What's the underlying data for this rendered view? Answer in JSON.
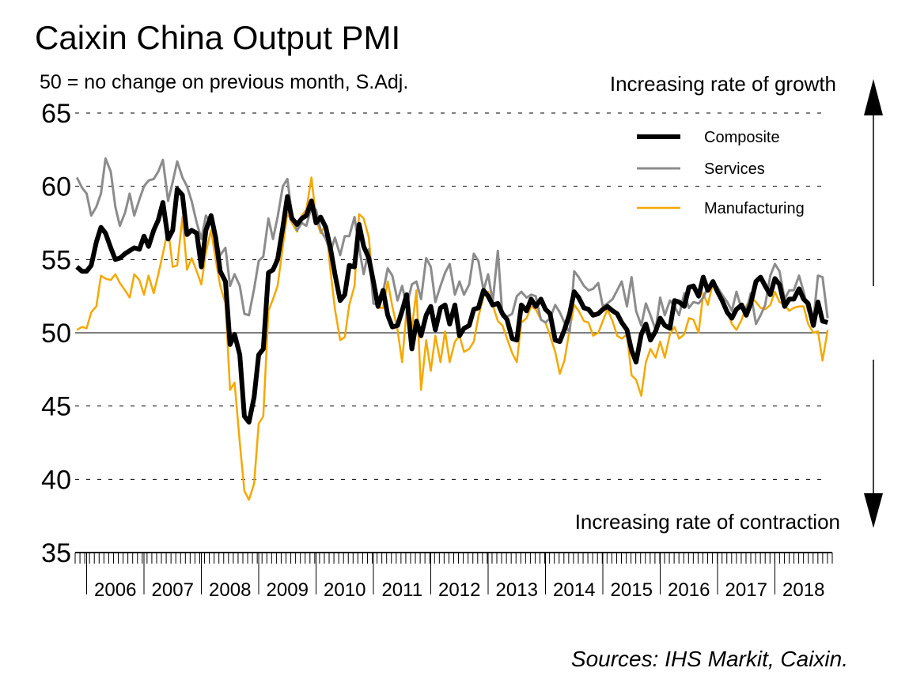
{
  "chart_data": {
    "type": "line",
    "title": "Caixin China Output PMI",
    "subtitle": "50 = no change on previous month, S.Adj.",
    "annotations": [
      "Increasing rate of growth",
      "Increasing rate of contraction"
    ],
    "source": "Sources: IHS Markit, Caixin.",
    "xlim": [
      2005.8,
      2019.0
    ],
    "ylim": [
      35,
      65
    ],
    "yticks": [
      35,
      40,
      45,
      50,
      55,
      60,
      65
    ],
    "xticks": [
      {
        "value": 2006.5,
        "label": "2006"
      },
      {
        "value": 2007.5,
        "label": "2007"
      },
      {
        "value": 2008.5,
        "label": "2008"
      },
      {
        "value": 2009.5,
        "label": "2009"
      },
      {
        "value": 2010.5,
        "label": "2010"
      },
      {
        "value": 2011.5,
        "label": "2011"
      },
      {
        "value": 2012.5,
        "label": "2012"
      },
      {
        "value": 2013.5,
        "label": "2013"
      },
      {
        "value": 2014.5,
        "label": "2014"
      },
      {
        "value": 2015.5,
        "label": "2015"
      },
      {
        "value": 2016.5,
        "label": "2016"
      },
      {
        "value": 2017.5,
        "label": "2017"
      },
      {
        "value": 2018.5,
        "label": "2018"
      }
    ],
    "grid": true,
    "baseline": 50,
    "legend": "top-right",
    "x": [
      2005.83,
      2005.92,
      2006,
      2006.08,
      2006.17,
      2006.25,
      2006.33,
      2006.42,
      2006.5,
      2006.58,
      2006.67,
      2006.75,
      2006.83,
      2006.92,
      2007,
      2007.08,
      2007.17,
      2007.25,
      2007.33,
      2007.42,
      2007.5,
      2007.58,
      2007.67,
      2007.75,
      2007.83,
      2007.92,
      2008,
      2008.08,
      2008.17,
      2008.25,
      2008.33,
      2008.42,
      2008.5,
      2008.58,
      2008.67,
      2008.75,
      2008.83,
      2008.92,
      2009,
      2009.08,
      2009.17,
      2009.25,
      2009.33,
      2009.42,
      2009.5,
      2009.58,
      2009.67,
      2009.75,
      2009.83,
      2009.92,
      2010,
      2010.08,
      2010.17,
      2010.25,
      2010.33,
      2010.42,
      2010.5,
      2010.58,
      2010.67,
      2010.75,
      2010.83,
      2010.92,
      2011,
      2011.08,
      2011.17,
      2011.25,
      2011.33,
      2011.42,
      2011.5,
      2011.58,
      2011.67,
      2011.75,
      2011.83,
      2011.92,
      2012,
      2012.08,
      2012.17,
      2012.25,
      2012.33,
      2012.42,
      2012.5,
      2012.58,
      2012.67,
      2012.75,
      2012.83,
      2012.92,
      2013,
      2013.08,
      2013.17,
      2013.25,
      2013.33,
      2013.42,
      2013.5,
      2013.58,
      2013.67,
      2013.75,
      2013.83,
      2013.92,
      2014,
      2014.08,
      2014.17,
      2014.25,
      2014.33,
      2014.42,
      2014.5,
      2014.58,
      2014.67,
      2014.75,
      2014.83,
      2014.92,
      2015,
      2015.08,
      2015.17,
      2015.25,
      2015.33,
      2015.42,
      2015.5,
      2015.58,
      2015.67,
      2015.75,
      2015.83,
      2015.92,
      2016,
      2016.08,
      2016.17,
      2016.25,
      2016.33,
      2016.42,
      2016.5,
      2016.58,
      2016.67,
      2016.75,
      2016.83,
      2016.92,
      2017,
      2017.08,
      2017.17,
      2017.25,
      2017.33,
      2017.42,
      2017.5,
      2017.58,
      2017.67,
      2017.75,
      2017.83,
      2017.92,
      2018,
      2018.08,
      2018.17,
      2018.25,
      2018.33,
      2018.42,
      2018.5,
      2018.58,
      2018.67,
      2018.75,
      2018.83,
      2018.92
    ],
    "series": [
      {
        "name": "Composite",
        "color": "#000000",
        "width": 6,
        "values": [
          54.5,
          54.2,
          54.2,
          54.6,
          56.2,
          57.2,
          56.8,
          55.8,
          55.0,
          55.1,
          55.4,
          55.6,
          55.8,
          55.7,
          56.6,
          55.9,
          57.0,
          57.7,
          58.9,
          56.4,
          57.0,
          59.8,
          59.4,
          56.7,
          57.0,
          56.8,
          54.5,
          57.0,
          58.0,
          56.5,
          54.2,
          53.5,
          49.2,
          49.9,
          48.5,
          44.3,
          43.9,
          45.6,
          48.5,
          48.9,
          54.1,
          54.3,
          55.0,
          57.2,
          59.3,
          57.8,
          57.4,
          57.8,
          58.0,
          59.0,
          57.5,
          57.9,
          57.2,
          55.8,
          54.0,
          52.2,
          52.6,
          54.6,
          54.5,
          57.4,
          55.9,
          55.1,
          53.5,
          51.8,
          52.9,
          51.2,
          50.4,
          50.5,
          51.5,
          52.6,
          48.9,
          50.8,
          49.8,
          51.2,
          51.8,
          50.2,
          51.7,
          51.9,
          50.6,
          51.9,
          49.8,
          50.3,
          50.5,
          51.6,
          51.7,
          52.9,
          52.5,
          51.9,
          52.0,
          51.3,
          50.9,
          49.6,
          49.5,
          51.9,
          51.5,
          52.3,
          51.8,
          52.3,
          51.6,
          51.3,
          49.5,
          49.4,
          50.2,
          51.3,
          52.8,
          52.4,
          51.7,
          51.6,
          51.2,
          51.3,
          51.6,
          51.8,
          51.5,
          51.3,
          50.7,
          50.2,
          48.8,
          48.0,
          49.9,
          50.6,
          49.5,
          50.1,
          51.0,
          50.5,
          50.3,
          52.2,
          52.1,
          51.8,
          53.1,
          53.2,
          52.5,
          53.8,
          52.9,
          53.5,
          52.8,
          52.2,
          51.4,
          51.0,
          51.6,
          51.9,
          51.2,
          52.0,
          53.5,
          53.8,
          53.2,
          52.6,
          53.7,
          53.3,
          51.8,
          52.3,
          52.3,
          53.0,
          52.3,
          52.0,
          50.5,
          52.1,
          50.8,
          50.7
        ]
      },
      {
        "name": "Services",
        "color": "#8c8c8c",
        "width": 3,
        "values": [
          60.6,
          59.9,
          59.5,
          58.0,
          58.6,
          59.5,
          61.9,
          61.0,
          58.6,
          57.3,
          58.2,
          59.5,
          58.0,
          59.1,
          60.0,
          60.4,
          60.5,
          61.0,
          61.8,
          59.0,
          60.3,
          61.7,
          60.6,
          60.0,
          59.0,
          57.5,
          56.4,
          58.0,
          57.5,
          56.6,
          55.3,
          55.8,
          53.2,
          54.0,
          53.2,
          51.3,
          51.2,
          53.0,
          54.9,
          55.2,
          57.8,
          56.4,
          57.9,
          60.0,
          60.5,
          58.0,
          57.0,
          57.5,
          57.3,
          58.6,
          58.4,
          57.0,
          56.4,
          55.5,
          56.5,
          55.3,
          56.6,
          56.6,
          57.9,
          55.8,
          54.0,
          55.7,
          52.0,
          51.9,
          52.8,
          54.4,
          53.9,
          52.2,
          53.2,
          51.8,
          53.3,
          53.5,
          52.3,
          55.1,
          54.5,
          52.1,
          53.2,
          54.1,
          54.7,
          52.6,
          53.5,
          52.6,
          53.3,
          55.4,
          54.9,
          52.9,
          54.0,
          52.1,
          55.6,
          51.1,
          51.1,
          51.3,
          52.5,
          52.8,
          52.4,
          52.6,
          52.5,
          50.9,
          50.7,
          51.0,
          51.9,
          51.4,
          50.7,
          50.0,
          54.2,
          53.8,
          53.2,
          52.9,
          53.0,
          53.4,
          51.8,
          52.0,
          52.3,
          52.9,
          53.5,
          51.8,
          53.8,
          51.5,
          50.5,
          52.0,
          51.2,
          50.2,
          52.4,
          51.2,
          52.2,
          51.8,
          51.2,
          52.7,
          51.7,
          52.1,
          52.0,
          52.4,
          53.1,
          53.4,
          53.1,
          52.6,
          52.1,
          51.5,
          52.8,
          51.6,
          51.5,
          52.7,
          50.6,
          51.2,
          51.9,
          53.9,
          54.7,
          54.2,
          52.3,
          52.9,
          52.9,
          53.9,
          52.8,
          51.5,
          50.8,
          53.9,
          53.8,
          51.0
        ]
      },
      {
        "name": "Manufacturing",
        "color": "#f5a800",
        "width": 2.5,
        "values": [
          50.2,
          50.4,
          50.3,
          51.4,
          51.8,
          53.9,
          53.7,
          53.6,
          54.0,
          53.4,
          52.9,
          52.4,
          54.0,
          53.6,
          52.6,
          53.9,
          52.7,
          54.0,
          55.4,
          57.1,
          54.5,
          54.6,
          57.9,
          54.3,
          55.1,
          54.2,
          53.3,
          55.5,
          57.0,
          55.0,
          53.2,
          52.0,
          46.1,
          46.6,
          42.5,
          39.2,
          38.6,
          39.7,
          43.8,
          44.3,
          51.5,
          52.3,
          53.2,
          55.9,
          58.2,
          57.5,
          56.9,
          58.0,
          58.4,
          60.6,
          57.8,
          56.8,
          57.4,
          54.3,
          51.6,
          49.5,
          49.7,
          51.9,
          53.2,
          58.1,
          57.8,
          56.5,
          53.0,
          51.7,
          51.7,
          53.5,
          51.8,
          50.2,
          48.0,
          51.6,
          50.3,
          52.9,
          46.1,
          49.5,
          47.4,
          49.8,
          48.0,
          50.1,
          48.0,
          49.4,
          49.8,
          48.7,
          48.9,
          49.4,
          51.1,
          52.5,
          52.8,
          51.9,
          50.8,
          50.5,
          49.6,
          48.6,
          48.0,
          50.7,
          51.0,
          51.8,
          51.6,
          50.9,
          50.7,
          49.8,
          48.7,
          47.2,
          48.1,
          50.2,
          51.9,
          51.5,
          50.8,
          50.7,
          49.8,
          50.0,
          50.8,
          51.6,
          50.8,
          49.8,
          49.6,
          49.9,
          47.1,
          46.8,
          45.7,
          48.0,
          48.9,
          48.3,
          49.4,
          48.3,
          49.9,
          50.4,
          49.6,
          49.9,
          51.0,
          50.9,
          50.0,
          52.7,
          51.9,
          53.4,
          52.6,
          52.3,
          51.5,
          50.6,
          50.2,
          50.9,
          51.8,
          52.4,
          52.1,
          51.7,
          51.6,
          51.9,
          52.8,
          52.1,
          51.9,
          51.5,
          51.7,
          51.8,
          51.8,
          50.6,
          50.0,
          50.1,
          48.1,
          50.2
        ]
      }
    ]
  }
}
